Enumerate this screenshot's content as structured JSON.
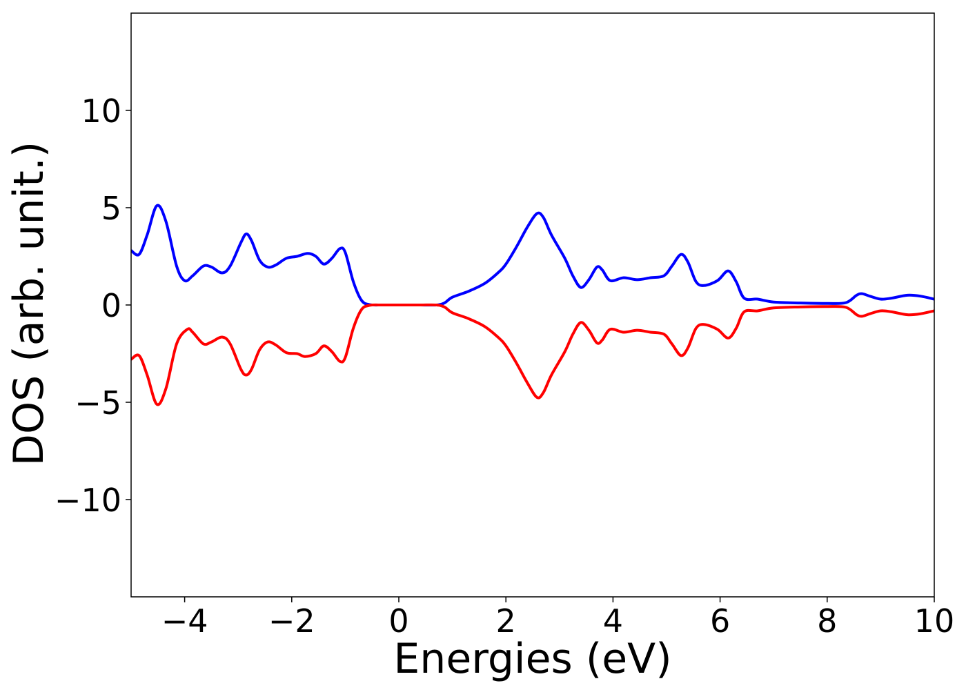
{
  "chart_data": {
    "type": "line",
    "xlabel": "Energies (eV)",
    "ylabel": "DOS (arb. unit.)",
    "xlim": [
      -5,
      10
    ],
    "ylim": [
      -15,
      15
    ],
    "xticks": [
      -4,
      -2,
      0,
      2,
      4,
      6,
      8,
      10
    ],
    "xtick_labels": [
      "−4",
      "−2",
      "0",
      "2",
      "4",
      "6",
      "8",
      "10"
    ],
    "yticks": [
      -10,
      -5,
      0,
      5,
      10
    ],
    "ytick_labels": [
      "−10",
      "−5",
      "0",
      "5",
      "10"
    ],
    "grid": false,
    "series": [
      {
        "color": "#0000ff",
        "points": [
          [
            -5.0,
            2.8
          ],
          [
            -4.85,
            2.6
          ],
          [
            -4.7,
            3.6
          ],
          [
            -4.52,
            5.1
          ],
          [
            -4.35,
            4.3
          ],
          [
            -4.15,
            2.0
          ],
          [
            -4.0,
            1.25
          ],
          [
            -3.85,
            1.5
          ],
          [
            -3.65,
            2.0
          ],
          [
            -3.5,
            1.95
          ],
          [
            -3.3,
            1.65
          ],
          [
            -3.15,
            2.0
          ],
          [
            -2.95,
            3.2
          ],
          [
            -2.85,
            3.65
          ],
          [
            -2.75,
            3.3
          ],
          [
            -2.6,
            2.3
          ],
          [
            -2.45,
            1.95
          ],
          [
            -2.3,
            2.05
          ],
          [
            -2.1,
            2.4
          ],
          [
            -1.9,
            2.5
          ],
          [
            -1.7,
            2.65
          ],
          [
            -1.55,
            2.5
          ],
          [
            -1.4,
            2.1
          ],
          [
            -1.25,
            2.4
          ],
          [
            -1.1,
            2.9
          ],
          [
            -1.0,
            2.7
          ],
          [
            -0.85,
            1.2
          ],
          [
            -0.7,
            0.25
          ],
          [
            -0.55,
            0.02
          ],
          [
            -0.3,
            0.0
          ],
          [
            0.0,
            0.0
          ],
          [
            0.4,
            0.0
          ],
          [
            0.7,
            0.0
          ],
          [
            0.85,
            0.1
          ],
          [
            1.0,
            0.4
          ],
          [
            1.3,
            0.7
          ],
          [
            1.6,
            1.1
          ],
          [
            1.85,
            1.65
          ],
          [
            2.0,
            2.1
          ],
          [
            2.2,
            3.0
          ],
          [
            2.4,
            4.0
          ],
          [
            2.58,
            4.7
          ],
          [
            2.7,
            4.5
          ],
          [
            2.85,
            3.6
          ],
          [
            3.1,
            2.4
          ],
          [
            3.25,
            1.5
          ],
          [
            3.4,
            0.9
          ],
          [
            3.55,
            1.3
          ],
          [
            3.7,
            1.95
          ],
          [
            3.8,
            1.8
          ],
          [
            3.95,
            1.25
          ],
          [
            4.2,
            1.4
          ],
          [
            4.45,
            1.3
          ],
          [
            4.7,
            1.4
          ],
          [
            4.95,
            1.5
          ],
          [
            5.1,
            2.0
          ],
          [
            5.27,
            2.6
          ],
          [
            5.4,
            2.2
          ],
          [
            5.55,
            1.2
          ],
          [
            5.7,
            1.0
          ],
          [
            5.95,
            1.25
          ],
          [
            6.15,
            1.75
          ],
          [
            6.3,
            1.2
          ],
          [
            6.45,
            0.35
          ],
          [
            6.7,
            0.3
          ],
          [
            7.0,
            0.15
          ],
          [
            7.5,
            0.1
          ],
          [
            8.0,
            0.08
          ],
          [
            8.35,
            0.12
          ],
          [
            8.55,
            0.5
          ],
          [
            8.65,
            0.58
          ],
          [
            8.8,
            0.45
          ],
          [
            9.0,
            0.3
          ],
          [
            9.2,
            0.35
          ],
          [
            9.5,
            0.5
          ],
          [
            9.75,
            0.45
          ],
          [
            10.0,
            0.3
          ]
        ]
      },
      {
        "color": "#ff0000",
        "points": [
          [
            -5.0,
            -2.8
          ],
          [
            -4.85,
            -2.6
          ],
          [
            -4.7,
            -3.6
          ],
          [
            -4.52,
            -5.1
          ],
          [
            -4.35,
            -4.3
          ],
          [
            -4.15,
            -2.0
          ],
          [
            -3.95,
            -1.25
          ],
          [
            -3.85,
            -1.4
          ],
          [
            -3.65,
            -2.0
          ],
          [
            -3.5,
            -1.9
          ],
          [
            -3.3,
            -1.65
          ],
          [
            -3.15,
            -2.0
          ],
          [
            -2.95,
            -3.3
          ],
          [
            -2.85,
            -3.6
          ],
          [
            -2.75,
            -3.3
          ],
          [
            -2.6,
            -2.3
          ],
          [
            -2.45,
            -1.9
          ],
          [
            -2.3,
            -2.05
          ],
          [
            -2.1,
            -2.45
          ],
          [
            -1.9,
            -2.5
          ],
          [
            -1.75,
            -2.65
          ],
          [
            -1.55,
            -2.5
          ],
          [
            -1.4,
            -2.1
          ],
          [
            -1.25,
            -2.4
          ],
          [
            -1.1,
            -2.9
          ],
          [
            -1.0,
            -2.7
          ],
          [
            -0.85,
            -1.2
          ],
          [
            -0.7,
            -0.25
          ],
          [
            -0.55,
            -0.02
          ],
          [
            -0.3,
            0.0
          ],
          [
            0.0,
            0.0
          ],
          [
            0.4,
            0.0
          ],
          [
            0.7,
            0.0
          ],
          [
            0.85,
            -0.1
          ],
          [
            1.0,
            -0.4
          ],
          [
            1.3,
            -0.7
          ],
          [
            1.6,
            -1.1
          ],
          [
            1.85,
            -1.65
          ],
          [
            2.0,
            -2.1
          ],
          [
            2.2,
            -3.0
          ],
          [
            2.4,
            -4.0
          ],
          [
            2.58,
            -4.75
          ],
          [
            2.7,
            -4.5
          ],
          [
            2.85,
            -3.6
          ],
          [
            3.1,
            -2.4
          ],
          [
            3.25,
            -1.5
          ],
          [
            3.4,
            -0.9
          ],
          [
            3.55,
            -1.3
          ],
          [
            3.7,
            -1.95
          ],
          [
            3.8,
            -1.8
          ],
          [
            3.95,
            -1.25
          ],
          [
            4.2,
            -1.4
          ],
          [
            4.45,
            -1.3
          ],
          [
            4.7,
            -1.4
          ],
          [
            4.95,
            -1.5
          ],
          [
            5.1,
            -2.0
          ],
          [
            5.27,
            -2.6
          ],
          [
            5.4,
            -2.2
          ],
          [
            5.55,
            -1.2
          ],
          [
            5.7,
            -1.0
          ],
          [
            5.95,
            -1.25
          ],
          [
            6.15,
            -1.7
          ],
          [
            6.3,
            -1.2
          ],
          [
            6.45,
            -0.35
          ],
          [
            6.7,
            -0.3
          ],
          [
            7.0,
            -0.15
          ],
          [
            7.5,
            -0.1
          ],
          [
            8.0,
            -0.08
          ],
          [
            8.35,
            -0.12
          ],
          [
            8.55,
            -0.5
          ],
          [
            8.65,
            -0.58
          ],
          [
            8.8,
            -0.45
          ],
          [
            9.0,
            -0.3
          ],
          [
            9.2,
            -0.35
          ],
          [
            9.5,
            -0.5
          ],
          [
            9.75,
            -0.45
          ],
          [
            10.0,
            -0.3
          ]
        ]
      }
    ]
  }
}
